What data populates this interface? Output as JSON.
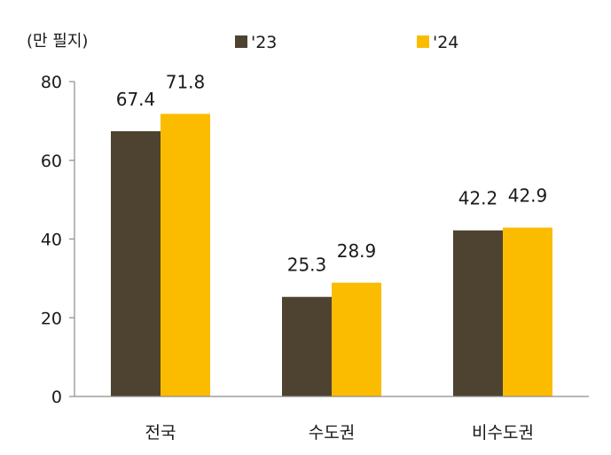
{
  "chart_data": {
    "type": "bar",
    "unit_label": "(만 필지)",
    "categories": [
      "전국",
      "수도권",
      "비수도권"
    ],
    "series": [
      {
        "name": "'23",
        "values": [
          67.4,
          25.3,
          42.2
        ],
        "value_labels": [
          "67.4",
          "25.3",
          "42.2"
        ],
        "color": "#4d4330"
      },
      {
        "name": "'24",
        "values": [
          71.8,
          28.9,
          42.9
        ],
        "value_labels": [
          "71.8",
          "28.9",
          "42.9"
        ],
        "color": "#fbbc00"
      }
    ],
    "ylim": [
      0,
      80
    ],
    "yticks": [
      0,
      20,
      40,
      60,
      80
    ],
    "ytick_labels": [
      "0",
      "20",
      "40",
      "60",
      "80"
    ],
    "grid": false,
    "legend_position": "top"
  }
}
